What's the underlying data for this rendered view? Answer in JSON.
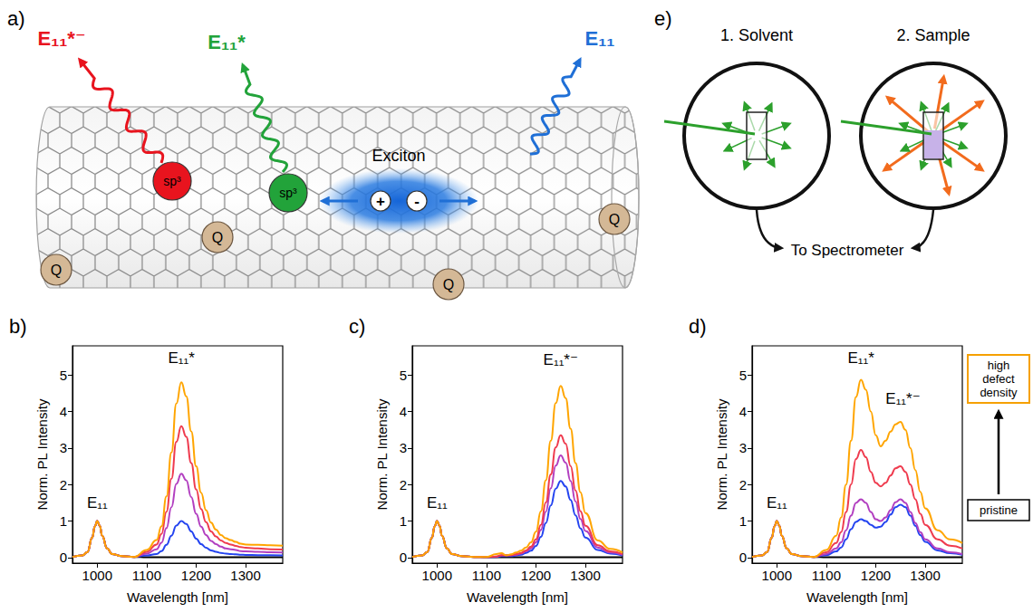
{
  "diagram_a": {
    "panel": "a)",
    "emissions": [
      {
        "label": "E₁₁*⁻",
        "color": "#e8141e"
      },
      {
        "label": "E₁₁*",
        "color": "#22a33a"
      },
      {
        "label": "E₁₁",
        "color": "#1f6fd6"
      }
    ],
    "defects": [
      {
        "label": "sp³",
        "color": "#e8141e"
      },
      {
        "label": "sp³",
        "color": "#22a33a"
      }
    ],
    "exciton": "Exciton",
    "charges": [
      "+",
      "-"
    ],
    "quenchers": [
      "Q",
      "Q",
      "Q",
      "Q"
    ]
  },
  "diagram_e": {
    "panel": "e)",
    "steps": [
      "1. Solvent",
      "2. Sample"
    ],
    "output": "To Spectrometer"
  },
  "chart_data": [
    {
      "type": "line",
      "panel": "b)",
      "x_label": "Wavelength [nm]",
      "y_label": "Norm. PL Intensity",
      "x": [
        950,
        970,
        980,
        990,
        995,
        1000,
        1005,
        1010,
        1020,
        1030,
        1050,
        1075,
        1100,
        1120,
        1130,
        1140,
        1150,
        1160,
        1170,
        1180,
        1190,
        1200,
        1210,
        1220,
        1230,
        1240,
        1250,
        1260,
        1270,
        1280,
        1290,
        1300,
        1325,
        1350,
        1375
      ],
      "xlim": [
        950,
        1375
      ],
      "xticks": [
        1000,
        1100,
        1200,
        1300
      ],
      "ylim": [
        -0.15,
        5.8
      ],
      "yticks": [
        0,
        1,
        2,
        3,
        4,
        5
      ],
      "grid": false,
      "series": [
        {
          "color": "#000000",
          "values": [
            0.02,
            0.06,
            0.15,
            0.55,
            0.85,
            1.0,
            0.88,
            0.6,
            0.25,
            0.1,
            0.04,
            0.02,
            0.01,
            0.01,
            0.01,
            0.01,
            0.01,
            0.01,
            0.01,
            0.01,
            0.01,
            0.01,
            0.01,
            0.01,
            0.01,
            0.01,
            0.01,
            0.01,
            0.01,
            0.01,
            0.01,
            0.01,
            0.01,
            0.01,
            0.01
          ]
        },
        {
          "color": "#2444f0",
          "values": [
            0.02,
            0.06,
            0.15,
            0.55,
            0.85,
            1.0,
            0.88,
            0.6,
            0.25,
            0.1,
            0.04,
            0.02,
            0.06,
            0.1,
            0.18,
            0.35,
            0.6,
            0.88,
            1.0,
            0.92,
            0.72,
            0.52,
            0.37,
            0.27,
            0.2,
            0.16,
            0.13,
            0.11,
            0.1,
            0.09,
            0.08,
            0.075,
            0.07,
            0.065,
            0.06
          ]
        },
        {
          "color": "#b23fc0",
          "values": [
            0.02,
            0.06,
            0.15,
            0.55,
            0.85,
            1.0,
            0.88,
            0.6,
            0.25,
            0.1,
            0.04,
            0.02,
            0.11,
            0.23,
            0.41,
            0.81,
            1.38,
            2.02,
            2.3,
            2.12,
            1.66,
            1.2,
            0.85,
            0.62,
            0.46,
            0.37,
            0.3,
            0.25,
            0.23,
            0.21,
            0.18,
            0.17,
            0.16,
            0.15,
            0.14
          ]
        },
        {
          "color": "#ef3b4e",
          "values": [
            0.02,
            0.06,
            0.15,
            0.55,
            0.85,
            1.0,
            0.88,
            0.6,
            0.25,
            0.1,
            0.04,
            0.02,
            0.16,
            0.36,
            0.65,
            1.26,
            2.16,
            3.17,
            3.6,
            3.31,
            2.59,
            1.87,
            1.33,
            0.97,
            0.72,
            0.58,
            0.47,
            0.4,
            0.36,
            0.32,
            0.29,
            0.27,
            0.25,
            0.23,
            0.22
          ]
        },
        {
          "color": "#ffa500",
          "values": [
            0.02,
            0.06,
            0.15,
            0.55,
            0.85,
            1.0,
            0.88,
            0.6,
            0.25,
            0.1,
            0.04,
            0.02,
            0.21,
            0.48,
            0.86,
            1.68,
            2.88,
            4.22,
            4.8,
            4.42,
            3.46,
            2.5,
            1.78,
            1.3,
            0.96,
            0.77,
            0.62,
            0.53,
            0.48,
            0.43,
            0.38,
            0.36,
            0.35,
            0.34,
            0.33
          ]
        }
      ],
      "annotations": [
        {
          "text": "E₁₁",
          "x": 1000,
          "y": 1.3
        },
        {
          "text": "E₁₁*",
          "x": 1170,
          "y": 5.25
        }
      ]
    },
    {
      "type": "line",
      "panel": "c)",
      "x_label": "Wavelength [nm]",
      "y_label": "Norm. PL Intensity",
      "x": [
        950,
        970,
        980,
        990,
        995,
        1000,
        1005,
        1010,
        1020,
        1030,
        1050,
        1075,
        1100,
        1120,
        1130,
        1140,
        1150,
        1160,
        1170,
        1180,
        1190,
        1200,
        1210,
        1220,
        1230,
        1240,
        1250,
        1260,
        1270,
        1280,
        1290,
        1300,
        1325,
        1350,
        1375
      ],
      "xlim": [
        950,
        1375
      ],
      "xticks": [
        1000,
        1100,
        1200,
        1300
      ],
      "ylim": [
        -0.15,
        5.8
      ],
      "yticks": [
        0,
        1,
        2,
        3,
        4,
        5
      ],
      "grid": false,
      "series": [
        {
          "color": "#000000",
          "values": [
            0.02,
            0.06,
            0.15,
            0.55,
            0.85,
            1.0,
            0.88,
            0.6,
            0.25,
            0.1,
            0.04,
            0.02,
            0.01,
            0.01,
            0.01,
            0.01,
            0.01,
            0.01,
            0.01,
            0.01,
            0.01,
            0.01,
            0.01,
            0.01,
            0.01,
            0.01,
            0.01,
            0.01,
            0.01,
            0.01,
            0.01,
            0.01,
            0.01,
            0.01,
            0.01
          ]
        },
        {
          "color": "#2444f0",
          "values": [
            0.02,
            0.06,
            0.15,
            0.55,
            0.85,
            1.0,
            0.88,
            0.6,
            0.25,
            0.1,
            0.04,
            0.02,
            0.02,
            0.02,
            0.04,
            0.04,
            0.04,
            0.06,
            0.08,
            0.13,
            0.19,
            0.32,
            0.57,
            0.95,
            1.43,
            1.89,
            2.1,
            1.95,
            1.58,
            1.16,
            0.8,
            0.55,
            0.21,
            0.11,
            0.06
          ]
        },
        {
          "color": "#b23fc0",
          "values": [
            0.02,
            0.06,
            0.15,
            0.55,
            0.85,
            1.0,
            0.88,
            0.6,
            0.25,
            0.1,
            0.04,
            0.02,
            0.02,
            0.03,
            0.06,
            0.06,
            0.06,
            0.08,
            0.11,
            0.17,
            0.25,
            0.42,
            0.76,
            1.26,
            1.9,
            2.52,
            2.8,
            2.6,
            2.1,
            1.54,
            1.06,
            0.73,
            0.28,
            0.14,
            0.08
          ]
        },
        {
          "color": "#ef3b4e",
          "values": [
            0.02,
            0.06,
            0.15,
            0.55,
            0.85,
            1.0,
            0.88,
            0.6,
            0.25,
            0.1,
            0.04,
            0.02,
            0.02,
            0.03,
            0.07,
            0.07,
            0.07,
            0.1,
            0.13,
            0.2,
            0.3,
            0.5,
            0.9,
            1.51,
            2.28,
            3.02,
            3.35,
            3.12,
            2.51,
            1.84,
            1.27,
            0.87,
            0.34,
            0.17,
            0.1
          ]
        },
        {
          "color": "#ffa500",
          "values": [
            0.02,
            0.06,
            0.15,
            0.55,
            0.85,
            1.0,
            0.88,
            0.6,
            0.25,
            0.1,
            0.04,
            0.02,
            0.02,
            0.1,
            0.12,
            0.06,
            0.09,
            0.14,
            0.19,
            0.28,
            0.42,
            0.71,
            1.27,
            2.12,
            3.2,
            4.23,
            4.7,
            4.37,
            3.53,
            2.59,
            1.79,
            1.22,
            0.47,
            0.24,
            0.14
          ]
        }
      ],
      "annotations": [
        {
          "text": "E₁₁",
          "x": 1000,
          "y": 1.3
        },
        {
          "text": "E₁₁*⁻",
          "x": 1250,
          "y": 5.2
        }
      ]
    },
    {
      "type": "line",
      "panel": "d)",
      "x_label": "Wavelength [nm]",
      "y_label": "Norm. PL Intensity",
      "x": [
        950,
        970,
        980,
        990,
        995,
        1000,
        1005,
        1010,
        1020,
        1030,
        1050,
        1075,
        1100,
        1120,
        1130,
        1140,
        1150,
        1160,
        1170,
        1180,
        1190,
        1200,
        1210,
        1220,
        1230,
        1240,
        1250,
        1260,
        1270,
        1280,
        1290,
        1300,
        1325,
        1350,
        1375
      ],
      "xlim": [
        950,
        1375
      ],
      "xticks": [
        1000,
        1100,
        1200,
        1300
      ],
      "ylim": [
        -0.15,
        5.8
      ],
      "yticks": [
        0,
        1,
        2,
        3,
        4,
        5
      ],
      "grid": false,
      "series": [
        {
          "color": "#000000",
          "values": [
            0.02,
            0.06,
            0.15,
            0.55,
            0.85,
            1.0,
            0.88,
            0.6,
            0.25,
            0.1,
            0.04,
            0.02,
            0.01,
            0.01,
            0.01,
            0.01,
            0.01,
            0.01,
            0.01,
            0.01,
            0.01,
            0.01,
            0.01,
            0.01,
            0.01,
            0.01,
            0.01,
            0.01,
            0.01,
            0.01,
            0.01,
            0.01,
            0.01,
            0.01,
            0.01
          ]
        },
        {
          "color": "#2444f0",
          "values": [
            0.02,
            0.06,
            0.15,
            0.55,
            0.85,
            1.0,
            0.88,
            0.6,
            0.25,
            0.1,
            0.04,
            0.02,
            0.07,
            0.17,
            0.28,
            0.5,
            0.78,
            0.98,
            1.05,
            1.0,
            0.9,
            0.82,
            0.85,
            0.98,
            1.18,
            1.38,
            1.45,
            1.38,
            1.15,
            0.87,
            0.62,
            0.43,
            0.2,
            0.12,
            0.08
          ]
        },
        {
          "color": "#b23fc0",
          "values": [
            0.02,
            0.06,
            0.15,
            0.55,
            0.85,
            1.0,
            0.88,
            0.6,
            0.25,
            0.1,
            0.04,
            0.02,
            0.1,
            0.25,
            0.42,
            0.75,
            1.15,
            1.5,
            1.6,
            1.5,
            1.25,
            1.05,
            1.0,
            1.1,
            1.3,
            1.52,
            1.6,
            1.5,
            1.25,
            0.95,
            0.7,
            0.5,
            0.25,
            0.15,
            0.1
          ]
        },
        {
          "color": "#ef3b4e",
          "values": [
            0.02,
            0.06,
            0.15,
            0.55,
            0.85,
            1.0,
            0.88,
            0.6,
            0.25,
            0.1,
            0.04,
            0.02,
            0.15,
            0.4,
            0.7,
            1.25,
            2.0,
            2.7,
            2.95,
            2.75,
            2.35,
            2.05,
            1.95,
            2.05,
            2.25,
            2.45,
            2.5,
            2.35,
            2.0,
            1.6,
            1.2,
            0.9,
            0.5,
            0.33,
            0.25
          ]
        },
        {
          "color": "#ffa500",
          "values": [
            0.02,
            0.06,
            0.15,
            0.55,
            0.85,
            1.0,
            0.88,
            0.6,
            0.25,
            0.1,
            0.04,
            0.02,
            0.21,
            0.6,
            1.1,
            2.0,
            3.2,
            4.4,
            4.87,
            4.6,
            4.0,
            3.35,
            3.05,
            3.2,
            3.45,
            3.65,
            3.72,
            3.5,
            3.0,
            2.4,
            1.8,
            1.35,
            0.75,
            0.5,
            0.4
          ]
        }
      ],
      "annotations": [
        {
          "text": "E₁₁",
          "x": 1000,
          "y": 1.3
        },
        {
          "text": "E₁₁*",
          "x": 1170,
          "y": 5.25
        },
        {
          "text": "E₁₁*⁻",
          "x": 1255,
          "y": 4.15
        }
      ],
      "defect_density_scale": {
        "high": "high defect density",
        "low": "pristine",
        "high_color": "#f5a000",
        "low_color": "#000000"
      }
    }
  ]
}
